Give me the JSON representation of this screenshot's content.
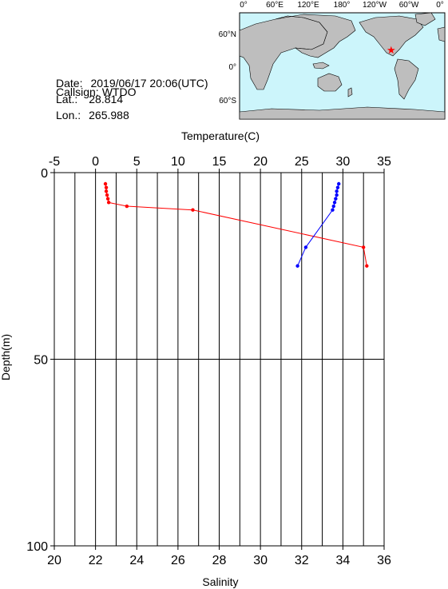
{
  "station": {
    "callsign_label": "Callsign:",
    "callsign": "WTDO",
    "date_label": "Date:",
    "date": "2019/06/17 20:06(UTC)",
    "lat_label": "Lat.:",
    "lat": "28.814",
    "lon_label": "Lon.:",
    "lon": "265.988"
  },
  "map": {
    "lon_ticks": [
      "0°",
      "60°E",
      "120°E",
      "180°",
      "120°W",
      "60°W",
      "0°"
    ],
    "lat_ticks": [
      "60°N",
      "0°",
      "60°S"
    ],
    "ocean_color": "#ccf5fb",
    "land_color": "#bebebe",
    "marker_color": "#ff0000",
    "marker_lon": 265.988,
    "marker_lat": 28.814
  },
  "chart_data": {
    "type": "line",
    "top_axis": {
      "label": "Temperature(C)",
      "range": [
        -5,
        35
      ],
      "ticks": [
        -5,
        0,
        5,
        10,
        15,
        20,
        25,
        30,
        35
      ]
    },
    "bottom_axis": {
      "label": "Salinity",
      "range": [
        20,
        36
      ],
      "ticks": [
        20,
        22,
        24,
        26,
        28,
        30,
        32,
        34,
        36
      ]
    },
    "y_axis": {
      "label": "Depth(m)",
      "range": [
        0,
        100
      ],
      "ticks": [
        0,
        50,
        100
      ],
      "inverted": true
    },
    "grid": "vertical lines at every salinity unit, horizontal line at 50 m",
    "series": [
      {
        "color": "#ff0000",
        "axis": "top",
        "points": [
          [
            1.2,
            3
          ],
          [
            1.3,
            4
          ],
          [
            1.3,
            5
          ],
          [
            1.4,
            6
          ],
          [
            1.5,
            7
          ],
          [
            1.6,
            8
          ],
          [
            3.8,
            9
          ],
          [
            11.8,
            10
          ],
          [
            32.5,
            20
          ],
          [
            32.9,
            25
          ]
        ]
      },
      {
        "color": "#0000ff",
        "axis": "bottom",
        "points": [
          [
            33.8,
            3
          ],
          [
            33.75,
            4
          ],
          [
            33.7,
            5
          ],
          [
            33.7,
            6
          ],
          [
            33.65,
            7
          ],
          [
            33.6,
            8
          ],
          [
            33.55,
            9
          ],
          [
            33.5,
            10
          ],
          [
            32.2,
            20
          ],
          [
            31.8,
            25
          ]
        ]
      }
    ]
  }
}
